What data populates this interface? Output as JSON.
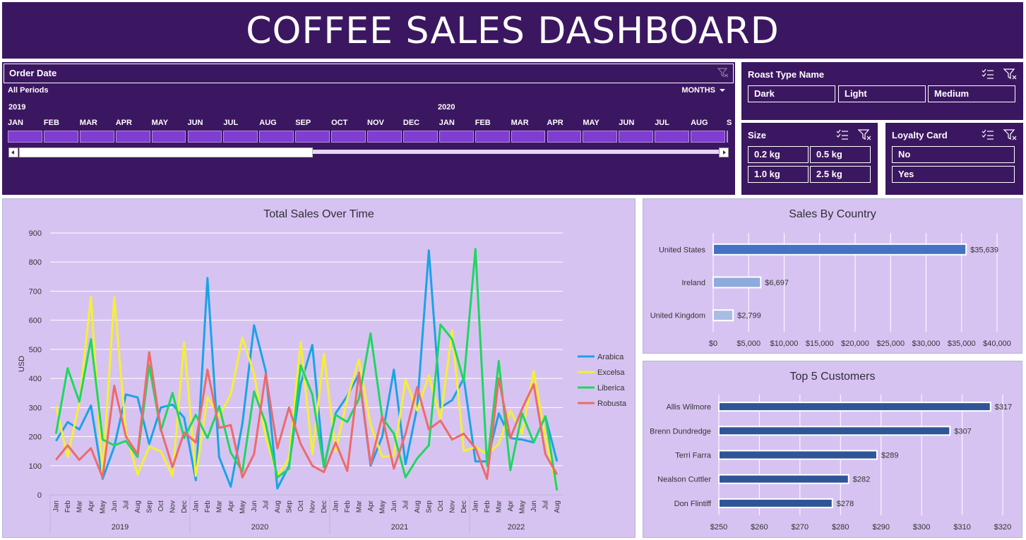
{
  "title": "COFFEE SALES DASHBOARD",
  "timeline": {
    "label": "Order Date",
    "periods": "All Periods",
    "level": "MONTHS",
    "years": [
      "2019",
      "2020"
    ],
    "months": [
      "JAN",
      "FEB",
      "MAR",
      "APR",
      "MAY",
      "JUN",
      "JUL",
      "AUG",
      "SEP",
      "OCT",
      "NOV",
      "DEC",
      "JAN",
      "FEB",
      "MAR",
      "APR",
      "MAY",
      "JUN",
      "JUL",
      "AUG",
      "S"
    ]
  },
  "roast": {
    "title": "Roast Type Name",
    "items": [
      "Dark",
      "Light",
      "Medium"
    ]
  },
  "size": {
    "title": "Size",
    "items": [
      "0.2 kg",
      "0.5 kg",
      "1.0 kg",
      "2.5 kg"
    ]
  },
  "loyalty": {
    "title": "Loyalty Card",
    "items": [
      "No",
      "Yes"
    ]
  },
  "colors": {
    "header": "#3c1761",
    "panel": "#d7c3f1",
    "cell": "#7f3dd1"
  },
  "chart_data": [
    {
      "type": "line",
      "title": "Total Sales Over Time",
      "ylabel": "USD",
      "ylim": [
        0,
        900
      ],
      "yticks": [
        0,
        100,
        200,
        300,
        400,
        500,
        600,
        700,
        800,
        900
      ],
      "months": [
        "Jan",
        "Feb",
        "Mar",
        "Apr",
        "May",
        "Jun",
        "Jul",
        "Aug",
        "Sep",
        "Oct",
        "Nov",
        "Dec",
        "Jan",
        "Feb",
        "Mar",
        "Apr",
        "May",
        "Jun",
        "Jul",
        "Aug",
        "Sep",
        "Oct",
        "Nov",
        "Dec",
        "Jan",
        "Feb",
        "Mar",
        "Apr",
        "May",
        "Jun",
        "Jul",
        "Aug",
        "Sep",
        "Oct",
        "Nov",
        "Dec",
        "Jan",
        "Feb",
        "Mar",
        "Apr",
        "May",
        "Jun",
        "Jul",
        "Aug"
      ],
      "years": [
        "2019",
        "2020",
        "2021",
        "2022"
      ],
      "legend": "right",
      "series": [
        {
          "name": "Arabica",
          "color": "#1aa3e8",
          "values": [
            185,
            250,
            225,
            307,
            55,
            165,
            345,
            335,
            175,
            300,
            310,
            265,
            50,
            745,
            130,
            28,
            245,
            583,
            425,
            22,
            100,
            380,
            515,
            95,
            280,
            340,
            415,
            100,
            200,
            430,
            105,
            300,
            840,
            300,
            325,
            400,
            115,
            115,
            280,
            195,
            190,
            180,
            270,
            115
          ]
        },
        {
          "name": "Excelsa",
          "color": "#f5f033",
          "values": [
            305,
            130,
            315,
            680,
            70,
            678,
            215,
            70,
            165,
            150,
            65,
            525,
            65,
            335,
            270,
            345,
            540,
            415,
            200,
            65,
            125,
            525,
            140,
            485,
            150,
            330,
            465,
            240,
            130,
            135,
            395,
            290,
            410,
            260,
            565,
            150,
            165,
            140,
            175,
            290,
            210,
            425,
            200,
            20
          ]
        },
        {
          "name": "Liberica",
          "color": "#1ed760",
          "values": [
            210,
            435,
            320,
            535,
            190,
            170,
            185,
            130,
            445,
            220,
            350,
            195,
            275,
            195,
            305,
            145,
            80,
            355,
            245,
            60,
            90,
            445,
            345,
            95,
            275,
            250,
            330,
            555,
            265,
            210,
            60,
            125,
            170,
            585,
            535,
            390,
            845,
            100,
            460,
            85,
            280,
            180,
            270,
            15
          ]
        },
        {
          "name": "Robusta",
          "color": "#ee6a6a",
          "values": [
            120,
            170,
            120,
            160,
            60,
            375,
            200,
            140,
            490,
            225,
            95,
            215,
            180,
            430,
            230,
            240,
            60,
            140,
            415,
            160,
            300,
            175,
            100,
            78,
            180,
            82,
            420,
            105,
            270,
            90,
            210,
            370,
            225,
            255,
            190,
            210,
            160,
            55,
            400,
            195,
            295,
            380,
            140,
            70
          ]
        }
      ]
    },
    {
      "type": "bar",
      "title": "Sales By Country",
      "categories": [
        "United States",
        "Ireland",
        "United Kingdom"
      ],
      "values": [
        35639,
        6697,
        2799
      ],
      "labels": [
        "$35,639",
        "$6,697",
        "$2,799"
      ],
      "colors": [
        "#4472c4",
        "#8faadc",
        "#a9bde3"
      ],
      "xlim": [
        0,
        40000
      ],
      "xticks": [
        "$0",
        "$5,000",
        "$10,000",
        "$15,000",
        "$20,000",
        "$25,000",
        "$30,000",
        "$35,000",
        "$40,000"
      ]
    },
    {
      "type": "bar",
      "title": "Top 5 Customers",
      "categories": [
        "Allis Wilmore",
        "Brenn Dundredge",
        "Terri Farra",
        "Nealson Cuttler",
        "Don Flintiff"
      ],
      "values": [
        317,
        307,
        289,
        282,
        278
      ],
      "labels": [
        "$317",
        "$307",
        "$289",
        "$282",
        "$278"
      ],
      "color": "#2f5597",
      "xlim": [
        250,
        320
      ],
      "xticks": [
        "$250",
        "$260",
        "$270",
        "$280",
        "$290",
        "$300",
        "$310",
        "$320"
      ]
    }
  ]
}
